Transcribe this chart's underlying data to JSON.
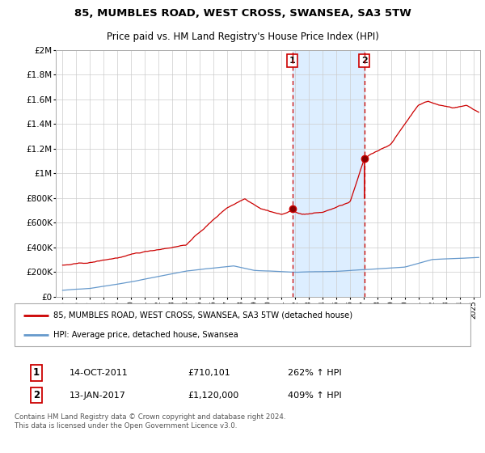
{
  "title": "85, MUMBLES ROAD, WEST CROSS, SWANSEA, SA3 5TW",
  "subtitle": "Price paid vs. HM Land Registry's House Price Index (HPI)",
  "legend_line1": "85, MUMBLES ROAD, WEST CROSS, SWANSEA, SA3 5TW (detached house)",
  "legend_line2": "HPI: Average price, detached house, Swansea",
  "annotation1_label": "1",
  "annotation1_date": "14-OCT-2011",
  "annotation1_price": "£710,101",
  "annotation1_hpi": "262% ↑ HPI",
  "annotation2_label": "2",
  "annotation2_date": "13-JAN-2017",
  "annotation2_price": "£1,120,000",
  "annotation2_hpi": "409% ↑ HPI",
  "footer": "Contains HM Land Registry data © Crown copyright and database right 2024.\nThis data is licensed under the Open Government Licence v3.0.",
  "red_color": "#cc0000",
  "blue_color": "#6699cc",
  "shading_color": "#ddeeff",
  "point1_x": 2011.79,
  "point1_y": 710101,
  "point2_x": 2017.04,
  "point2_y": 1120000,
  "point2_base_y": 800000,
  "ylim": [
    0,
    2000000
  ],
  "xlim": [
    1994.5,
    2025.5
  ],
  "yticks": [
    0,
    200000,
    400000,
    600000,
    800000,
    1000000,
    1200000,
    1400000,
    1600000,
    1800000,
    2000000
  ],
  "xticks": [
    1995,
    1996,
    1997,
    1998,
    1999,
    2000,
    2001,
    2002,
    2003,
    2004,
    2005,
    2006,
    2007,
    2008,
    2009,
    2010,
    2011,
    2012,
    2013,
    2014,
    2015,
    2016,
    2017,
    2018,
    2019,
    2020,
    2021,
    2022,
    2023,
    2024,
    2025
  ]
}
